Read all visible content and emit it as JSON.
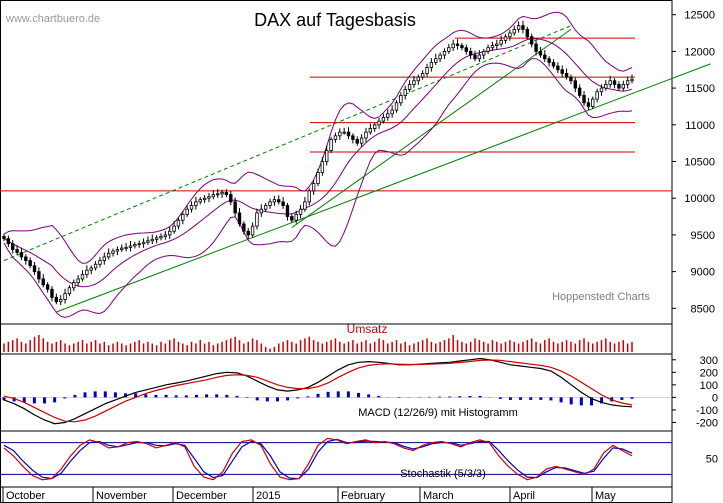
{
  "header": {
    "title": "DAX auf Tagesbasis",
    "watermark": "www.chartbuero.de",
    "source": "Hoppenstedt Charts"
  },
  "panels": {
    "volume_label": "Umsatz",
    "macd_label": "MACD (12/26/9) mit Histogramm",
    "stoch_label": "Stochastik (5/3/3)"
  },
  "colors": {
    "candle": "#000000",
    "bollinger": "#7b007b",
    "trend": "#008000",
    "support": "#cc0000",
    "volume": "#cc0000",
    "macd_line": "#000000",
    "macd_signal": "#cc0000",
    "histogram": "#0000cc",
    "stoch_k": "#cc0000",
    "stoch_d": "#0000cc",
    "stoch_bands": "#000080"
  },
  "chart_data": [
    {
      "type": "candlestick",
      "title": "DAX auf Tagesbasis",
      "x_labels": [
        "October",
        "November",
        "December",
        "2015",
        "February",
        "March",
        "April",
        "May"
      ],
      "y_ticks": [
        12500,
        12000,
        11500,
        11000,
        10500,
        10000,
        9500,
        9000,
        8500
      ],
      "ylim": [
        8300,
        12700
      ],
      "horizontal_levels": [
        10100,
        10630,
        11030,
        11650,
        12180
      ],
      "trendlines": [
        {
          "style": "solid",
          "from": {
            "day": 12,
            "value": 8450
          },
          "to": {
            "day": 162,
            "value": 11830
          }
        },
        {
          "style": "solid",
          "from": {
            "day": 66,
            "value": 9600
          },
          "to": {
            "day": 130,
            "value": 12300
          }
        },
        {
          "style": "dashed",
          "from": {
            "day": 0,
            "value": 9150
          },
          "to": {
            "day": 130,
            "value": 12350
          }
        }
      ],
      "approx_closes": [
        9450,
        9380,
        9300,
        9260,
        9200,
        9150,
        9080,
        9000,
        8900,
        8820,
        8760,
        8650,
        8590,
        8620,
        8700,
        8780,
        8850,
        8900,
        8960,
        9020,
        9050,
        9100,
        9150,
        9200,
        9250,
        9280,
        9300,
        9320,
        9330,
        9350,
        9370,
        9380,
        9400,
        9420,
        9440,
        9460,
        9480,
        9500,
        9550,
        9620,
        9700,
        9780,
        9850,
        9900,
        9950,
        9980,
        10000,
        10020,
        10050,
        10060,
        10080,
        10050,
        9950,
        9800,
        9650,
        9550,
        9500,
        9620,
        9800,
        9850,
        9900,
        9950,
        9980,
        9950,
        9900,
        9750,
        9700,
        9780,
        9850,
        9950,
        10100,
        10200,
        10350,
        10500,
        10650,
        10800,
        10850,
        10900,
        10900,
        10850,
        10800,
        10750,
        10820,
        10900,
        10950,
        11000,
        11050,
        11100,
        11150,
        11200,
        11300,
        11400,
        11480,
        11550,
        11600,
        11650,
        11700,
        11780,
        11850,
        11900,
        11950,
        12000,
        12050,
        12100,
        12080,
        12050,
        12000,
        11950,
        11900,
        11950,
        12000,
        12050,
        12080,
        12100,
        12150,
        12200,
        12250,
        12300,
        12350,
        12300,
        12200,
        12100,
        12000,
        11950,
        11900,
        11850,
        11800,
        11750,
        11700,
        11650,
        11600,
        11500,
        11400,
        11300,
        11250,
        11350,
        11450,
        11500,
        11550,
        11600,
        11550,
        11500,
        11550,
        11600,
        11620
      ]
    },
    {
      "type": "bar",
      "title": "Umsatz",
      "approx_relative_volume": [
        0.5,
        0.6,
        0.7,
        0.8,
        0.6,
        0.5,
        0.7,
        0.9,
        1.0,
        0.8,
        0.6,
        0.5,
        0.6,
        0.7,
        0.5,
        0.4,
        0.5,
        0.6,
        0.7,
        0.5,
        0.6,
        0.7,
        0.5,
        0.6,
        0.4,
        0.5,
        0.6,
        0.5,
        0.4,
        0.5,
        0.6,
        0.7,
        0.5,
        0.6,
        0.5,
        0.4,
        0.6,
        0.5,
        0.7,
        0.8,
        0.6,
        0.5,
        0.4,
        0.6,
        0.5,
        0.7,
        0.5,
        0.6,
        0.4,
        0.5,
        0.6,
        0.7,
        0.8,
        0.9,
        0.7,
        0.5,
        0.6,
        0.8,
        0.7,
        0.5,
        0.3,
        0.2,
        0.3,
        0.5,
        0.6,
        0.7,
        0.6,
        0.5,
        0.7,
        0.8,
        0.9,
        0.7,
        0.6,
        0.5,
        0.6,
        0.7,
        0.8,
        0.6,
        0.5,
        0.6,
        0.7,
        0.5,
        0.6,
        0.7,
        0.5,
        0.6,
        0.8,
        0.7,
        0.5,
        0.6,
        0.7,
        0.5,
        0.6,
        0.4,
        0.5,
        0.6,
        0.7,
        0.8,
        0.6,
        0.5,
        0.6,
        0.7,
        0.8,
        1.0,
        0.7,
        0.6,
        0.5,
        0.6,
        0.8,
        0.7,
        0.6,
        0.5,
        0.7,
        0.6,
        0.5,
        0.6,
        0.7,
        0.6,
        0.5,
        0.6,
        0.7,
        0.8,
        0.6,
        0.5,
        0.7,
        0.8,
        0.6,
        0.5,
        0.6,
        0.7,
        0.6,
        0.5,
        0.7,
        0.8,
        0.6,
        0.5,
        0.6,
        0.7,
        0.8,
        0.6,
        0.5,
        0.6,
        0.7,
        0.5,
        0.6
      ]
    },
    {
      "type": "line",
      "title": "MACD (12/26/9) mit Histogramm",
      "y_ticks": [
        300,
        200,
        100,
        0,
        -100,
        -200
      ],
      "ylim": [
        -260,
        330
      ],
      "approx_macd": [
        -20,
        -50,
        -90,
        -140,
        -180,
        -210,
        -200,
        -170,
        -130,
        -90,
        -50,
        -20,
        10,
        40,
        60,
        80,
        100,
        115,
        130,
        150,
        170,
        190,
        200,
        195,
        170,
        130,
        90,
        60,
        50,
        60,
        80,
        120,
        170,
        220,
        260,
        280,
        285,
        280,
        270,
        260,
        260,
        265,
        270,
        275,
        280,
        290,
        300,
        310,
        300,
        280,
        260,
        250,
        240,
        230,
        210,
        160,
        100,
        40,
        -10,
        -40,
        -60,
        -70,
        -75
      ],
      "approx_signal": [
        10,
        -10,
        -40,
        -80,
        -120,
        -160,
        -190,
        -195,
        -180,
        -150,
        -110,
        -70,
        -30,
        0,
        30,
        55,
        75,
        95,
        110,
        125,
        140,
        160,
        175,
        180,
        175,
        160,
        130,
        100,
        80,
        70,
        70,
        85,
        115,
        160,
        200,
        235,
        255,
        265,
        268,
        265,
        262,
        262,
        265,
        268,
        272,
        278,
        286,
        295,
        298,
        295,
        285,
        275,
        265,
        255,
        240,
        210,
        170,
        120,
        70,
        20,
        -20,
        -45,
        -60
      ]
    },
    {
      "type": "line",
      "title": "Stochastik (5/3/3)",
      "y_ticks": [
        50
      ],
      "ylim": [
        0,
        100
      ],
      "bands": [
        20,
        80
      ],
      "approx_k": [
        70,
        55,
        35,
        18,
        10,
        12,
        30,
        55,
        75,
        85,
        80,
        70,
        72,
        80,
        82,
        78,
        70,
        75,
        80,
        72,
        35,
        15,
        10,
        25,
        60,
        82,
        85,
        75,
        40,
        15,
        10,
        12,
        40,
        75,
        88,
        85,
        78,
        82,
        85,
        80,
        82,
        78,
        70,
        65,
        75,
        80,
        82,
        78,
        72,
        80,
        85,
        80,
        55,
        35,
        20,
        10,
        15,
        30,
        35,
        30,
        25,
        20,
        30,
        60,
        75,
        65,
        55
      ],
      "approx_d": [
        75,
        65,
        45,
        28,
        15,
        12,
        22,
        45,
        65,
        80,
        82,
        75,
        72,
        76,
        80,
        80,
        75,
        74,
        78,
        75,
        50,
        25,
        14,
        18,
        45,
        72,
        82,
        78,
        55,
        25,
        13,
        12,
        30,
        62,
        82,
        86,
        80,
        80,
        83,
        82,
        81,
        80,
        73,
        68,
        72,
        78,
        80,
        80,
        75,
        78,
        82,
        82,
        65,
        45,
        28,
        15,
        14,
        25,
        33,
        32,
        27,
        22,
        26,
        50,
        70,
        68,
        60
      ]
    }
  ]
}
